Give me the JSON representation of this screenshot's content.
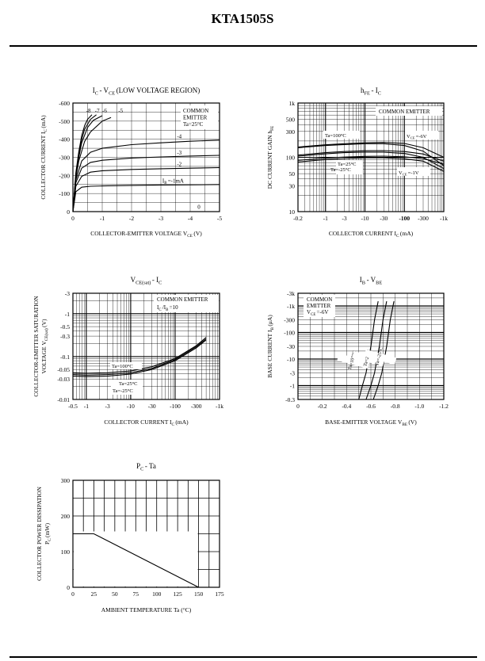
{
  "page": {
    "title": "KTA1505S"
  },
  "chart_data": [
    {
      "type": "line",
      "title": "I C - V CE (LOW VOLTAGE REGION)",
      "title_parts": [
        "I",
        "C",
        "- V",
        "CE",
        "(LOW VOLTAGE REGION)"
      ],
      "xlabel": "COLLECTOR-EMITTER VOLTAGE V CE (V)",
      "xlabel_parts": [
        "COLLECTOR-EMITTER VOLTAGE V",
        "CE",
        "(V)"
      ],
      "ylabel": "COLLECTOR CURRENT I C (mA)",
      "ylabel_parts": [
        "COLLECTOR CURRENT I",
        "C",
        "(mA)"
      ],
      "xlim": [
        0,
        -5
      ],
      "ylim": [
        0,
        -600
      ],
      "x_ticks": [
        0,
        -1,
        -2,
        -3,
        -4,
        -5
      ],
      "x_tick_labels": [
        "0",
        "-1",
        "-2",
        "-3",
        "-4",
        "-5"
      ],
      "y_ticks": [
        0,
        -100,
        -200,
        -300,
        -400,
        -500,
        -600
      ],
      "y_tick_labels": [
        "0",
        "-100",
        "-200",
        "-300",
        "-400",
        "-500",
        "-600"
      ],
      "grid": true,
      "legend": "top-right",
      "annotation": [
        "COMMON",
        "EMITTER",
        "Ta=25°C"
      ],
      "series": [
        {
          "name": "I B =-1mA",
          "label": "I",
          "label_sub": "B",
          "label_rest": "=-1mA",
          "x": [
            0,
            -0.1,
            -0.3,
            -0.6,
            -1,
            -2,
            -3,
            -4,
            -5
          ],
          "y": [
            0,
            -110,
            -135,
            -140,
            -142,
            -145,
            -147,
            -148,
            -150
          ]
        },
        {
          "name": "-2",
          "label": "-2",
          "x": [
            0,
            -0.1,
            -0.3,
            -0.6,
            -1,
            -2,
            -3,
            -4,
            -5
          ],
          "y": [
            0,
            -140,
            -195,
            -218,
            -226,
            -233,
            -237,
            -240,
            -243
          ]
        },
        {
          "name": "-3",
          "label": "-3",
          "x": [
            0,
            -0.1,
            -0.3,
            -0.6,
            -1,
            -2,
            -3,
            -4,
            -5
          ],
          "y": [
            0,
            -160,
            -240,
            -272,
            -284,
            -296,
            -302,
            -307,
            -311
          ]
        },
        {
          "name": "-4",
          "label": "-4",
          "x": [
            0,
            -0.1,
            -0.3,
            -0.6,
            -1,
            -2,
            -3,
            -4,
            -5
          ],
          "y": [
            0,
            -175,
            -280,
            -328,
            -350,
            -370,
            -380,
            -389,
            -395
          ]
        },
        {
          "name": "-5",
          "label": "-5",
          "x": [
            0,
            -0.1,
            -0.2,
            -0.4,
            -0.6,
            -1.0,
            -1.3
          ],
          "y": [
            0,
            -185,
            -280,
            -388,
            -440,
            -500,
            -520
          ]
        },
        {
          "name": "-6",
          "label": "-6",
          "x": [
            0,
            -0.1,
            -0.2,
            -0.3,
            -0.5,
            -0.7,
            -1.0
          ],
          "y": [
            0,
            -195,
            -300,
            -380,
            -465,
            -505,
            -530
          ]
        },
        {
          "name": "-7",
          "label": "-7",
          "x": [
            0,
            -0.1,
            -0.2,
            -0.3,
            -0.4,
            -0.6,
            -0.8
          ],
          "y": [
            0,
            -205,
            -315,
            -400,
            -455,
            -510,
            -535
          ]
        },
        {
          "name": "-8",
          "label": "-8",
          "x": [
            0,
            -0.1,
            -0.2,
            -0.3,
            -0.4,
            -0.5,
            -0.65
          ],
          "y": [
            0,
            -215,
            -330,
            -420,
            -475,
            -510,
            -535
          ]
        },
        {
          "name": "0",
          "label": "0",
          "x": [
            0,
            -5
          ],
          "y": [
            0,
            0
          ]
        }
      ]
    },
    {
      "type": "line",
      "title": "h FE - I C",
      "title_parts": [
        "h",
        "FE",
        "- I",
        "C"
      ],
      "xlabel": "COLLECTOR CURRENT I C (mA)",
      "xlabel_parts": [
        "COLLECTOR CURRENT I",
        "C",
        "(mA)"
      ],
      "ylabel": "DC CURRENT GAIN h FE",
      "ylabel_parts": [
        "DC CURRENT GAIN h",
        "FE"
      ],
      "x_scale": "log",
      "y_scale": "log",
      "xlim": [
        -0.2,
        -1000
      ],
      "ylim": [
        10,
        1000
      ],
      "x_tick_values": [
        -0.2,
        -1,
        -3,
        -10,
        -30,
        -100,
        -300,
        -1000
      ],
      "x_tick_labels": [
        "-0.2",
        "-1",
        "-3",
        "-10",
        "-30",
        "-100",
        "-300",
        "-1k"
      ],
      "y_tick_values": [
        10,
        30,
        50,
        100,
        300,
        500,
        1000
      ],
      "y_tick_labels": [
        "10",
        "30",
        "50",
        "100",
        "300",
        "500",
        "1k"
      ],
      "grid": true,
      "legend": "top-right",
      "annotation": [
        "COMMON EMITTER"
      ],
      "series": [
        {
          "name": "Ta=100°C (V CE =-6V)",
          "x": [
            -0.2,
            -1,
            -3,
            -10,
            -30,
            -100,
            -300,
            -1000
          ],
          "y": [
            155,
            170,
            178,
            185,
            188,
            180,
            150,
            100
          ]
        },
        {
          "name": "Ta=25°C (V CE =-6V)",
          "x": [
            -0.2,
            -1,
            -3,
            -10,
            -30,
            -100,
            -300,
            -1000
          ],
          "y": [
            110,
            122,
            128,
            132,
            133,
            128,
            115,
            85
          ]
        },
        {
          "name": "Ta=-25°C (V CE =-6V)",
          "x": [
            -0.2,
            -1,
            -3,
            -10,
            -30,
            -100,
            -300,
            -1000
          ],
          "y": [
            88,
            97,
            101,
            104,
            105,
            102,
            95,
            75
          ]
        },
        {
          "name": "Ta=100°C (V CE =-1V)",
          "x": [
            -0.2,
            -1,
            -3,
            -10,
            -30,
            -100,
            -300,
            -1000
          ],
          "y": [
            150,
            165,
            172,
            178,
            178,
            165,
            130,
            70
          ]
        },
        {
          "name": "Ta=25°C (V CE =-1V)",
          "x": [
            -0.2,
            -1,
            -3,
            -10,
            -30,
            -100,
            -300,
            -1000
          ],
          "y": [
            105,
            116,
            122,
            125,
            125,
            118,
            100,
            62
          ]
        },
        {
          "name": "Ta=-25°C (V CE =-1V)",
          "x": [
            -0.2,
            -1,
            -3,
            -10,
            -30,
            -100,
            -300,
            -1000
          ],
          "y": [
            82,
            91,
            95,
            98,
            98,
            94,
            85,
            55
          ]
        }
      ],
      "labels": {
        "ta100": "Ta=100°C",
        "ta25": "Ta=25°C",
        "tam25": "Ta=-25°C",
        "vce6": [
          "V",
          "CE",
          "=-6V"
        ],
        "vce1": [
          "V",
          "CE",
          "=-1V"
        ]
      }
    },
    {
      "type": "line",
      "title": "V CE(sat) - I C",
      "title_parts": [
        "V",
        "CE(sat)",
        "- I",
        "C"
      ],
      "xlabel": "COLLECTOR CURRENT I C (mA)",
      "xlabel_parts": [
        "COLLECTOR CURRENT I",
        "C",
        "(mA)"
      ],
      "ylabel_line1": "COLLECTOR-EMITTER SATURATION",
      "ylabel_line2": "VOLTAGE V CE(sat) (V)",
      "ylabel_line2_parts": [
        "VOLTAGE V",
        "CE(sat)",
        "(V)"
      ],
      "x_scale": "log",
      "y_scale": "log",
      "xlim": [
        -0.5,
        -1000
      ],
      "ylim": [
        -0.01,
        -3
      ],
      "x_tick_values": [
        -0.5,
        -1,
        -3,
        -10,
        -30,
        -100,
        -300,
        -1000
      ],
      "x_tick_labels": [
        "-0.5",
        "-1",
        "-3",
        "-10",
        "-30",
        "-100",
        "-300",
        "-1k"
      ],
      "y_tick_values": [
        -0.01,
        -0.03,
        -0.05,
        -0.1,
        -0.3,
        -0.5,
        -1,
        -3
      ],
      "y_tick_labels": [
        "-0.01",
        "-0.03",
        "-0.05",
        "-0.1",
        "-0.3",
        "-0.5",
        "-1",
        "-3"
      ],
      "grid": true,
      "legend": "top-right",
      "annotation": [
        "COMMON EMITTER",
        "I C /I B =10"
      ],
      "annotation_parts": [
        "I",
        "C",
        "/I",
        "B",
        "=10"
      ],
      "series": [
        {
          "name": "Ta=100°C",
          "x": [
            -0.5,
            -1,
            -3,
            -10,
            -30,
            -100,
            -300,
            -500
          ],
          "y": [
            -0.042,
            -0.041,
            -0.042,
            -0.046,
            -0.058,
            -0.09,
            -0.18,
            -0.28
          ]
        },
        {
          "name": "Ta=25°C",
          "x": [
            -0.5,
            -1,
            -3,
            -10,
            -30,
            -100,
            -300,
            -500
          ],
          "y": [
            -0.038,
            -0.037,
            -0.038,
            -0.042,
            -0.053,
            -0.085,
            -0.17,
            -0.26
          ]
        },
        {
          "name": "Ta=-25°C",
          "x": [
            -0.5,
            -1,
            -3,
            -10,
            -30,
            -100,
            -300,
            -500
          ],
          "y": [
            -0.035,
            -0.034,
            -0.035,
            -0.039,
            -0.05,
            -0.08,
            -0.16,
            -0.245
          ]
        }
      ],
      "labels": {
        "ta100": "Ta=100°C",
        "ta25": "Ta=25°C",
        "tam25": "Ta=-25°C"
      }
    },
    {
      "type": "line",
      "title": "I B - V BE",
      "title_parts": [
        "I",
        "B",
        "- V",
        "BE"
      ],
      "xlabel": "BASE-EMITTER VOLTAGE V BE (V)",
      "xlabel_parts": [
        "BASE-EMITTER VOLTAGE V",
        "BE",
        "(V)"
      ],
      "ylabel": "BASE CURRENT I B (μA)",
      "ylabel_parts": [
        "BASE CURRENT I",
        "B",
        "(μA)"
      ],
      "y_scale": "log",
      "xlim": [
        0,
        -1.2
      ],
      "ylim": [
        -0.3,
        -3000
      ],
      "x_ticks": [
        0,
        -0.2,
        -0.4,
        -0.6,
        -0.8,
        -1.0,
        -1.2
      ],
      "x_tick_labels": [
        "0",
        "-0.2",
        "-0.4",
        "-0.6",
        "-0.8",
        "-1.0",
        "-1.2"
      ],
      "y_tick_values": [
        -0.3,
        -1,
        -3,
        -10,
        -30,
        -100,
        -300,
        -1000,
        -3000
      ],
      "y_tick_labels": [
        "-0.3",
        "-1",
        "-3",
        "-10",
        "-30",
        "-100",
        "-300",
        "-1k",
        "-3k"
      ],
      "grid": true,
      "legend": "top-left",
      "annotation": [
        "COMMON",
        "EMITTER",
        "V CE =-6V"
      ],
      "annotation_parts": [
        "V",
        "CE",
        "=-6V"
      ],
      "series": [
        {
          "name": "Ta=100°C",
          "x": [
            -0.5,
            -0.53,
            -0.56,
            -0.6,
            -0.63,
            -0.66
          ],
          "y": [
            -0.3,
            -1,
            -3,
            -30,
            -300,
            -1500
          ]
        },
        {
          "name": "Ta=25°C",
          "x": [
            -0.56,
            -0.6,
            -0.63,
            -0.67,
            -0.7,
            -0.73
          ],
          "y": [
            -0.3,
            -1,
            -3,
            -30,
            -300,
            -1500
          ]
        },
        {
          "name": "Ta=-25°C",
          "x": [
            -0.62,
            -0.66,
            -0.69,
            -0.73,
            -0.76,
            -0.79
          ],
          "y": [
            -0.3,
            -1,
            -3,
            -30,
            -300,
            -1500
          ]
        }
      ]
    },
    {
      "type": "line",
      "title": "P C - Ta",
      "title_parts": [
        "P",
        "C",
        "- Ta"
      ],
      "xlabel": "AMBIENT TEMPERATURE Ta (°C)",
      "ylabel_line1": "COLLECTOR POWER DISSIPATION",
      "ylabel_line2": "P C (mW)",
      "ylabel_line2_parts": [
        "P",
        "C",
        "(mW)"
      ],
      "xlim": [
        0,
        175
      ],
      "ylim": [
        0,
        300
      ],
      "x_ticks": [
        0,
        25,
        50,
        75,
        100,
        125,
        150,
        175
      ],
      "x_tick_labels": [
        "0",
        "25",
        "50",
        "75",
        "100",
        "125",
        "150",
        "175"
      ],
      "y_ticks": [
        0,
        100,
        200,
        300
      ],
      "y_tick_labels": [
        "0",
        "100",
        "200",
        "300"
      ],
      "grid": true,
      "series": [
        {
          "x": [
            0,
            25,
            150
          ],
          "y": [
            150,
            150,
            0
          ]
        }
      ]
    }
  ]
}
